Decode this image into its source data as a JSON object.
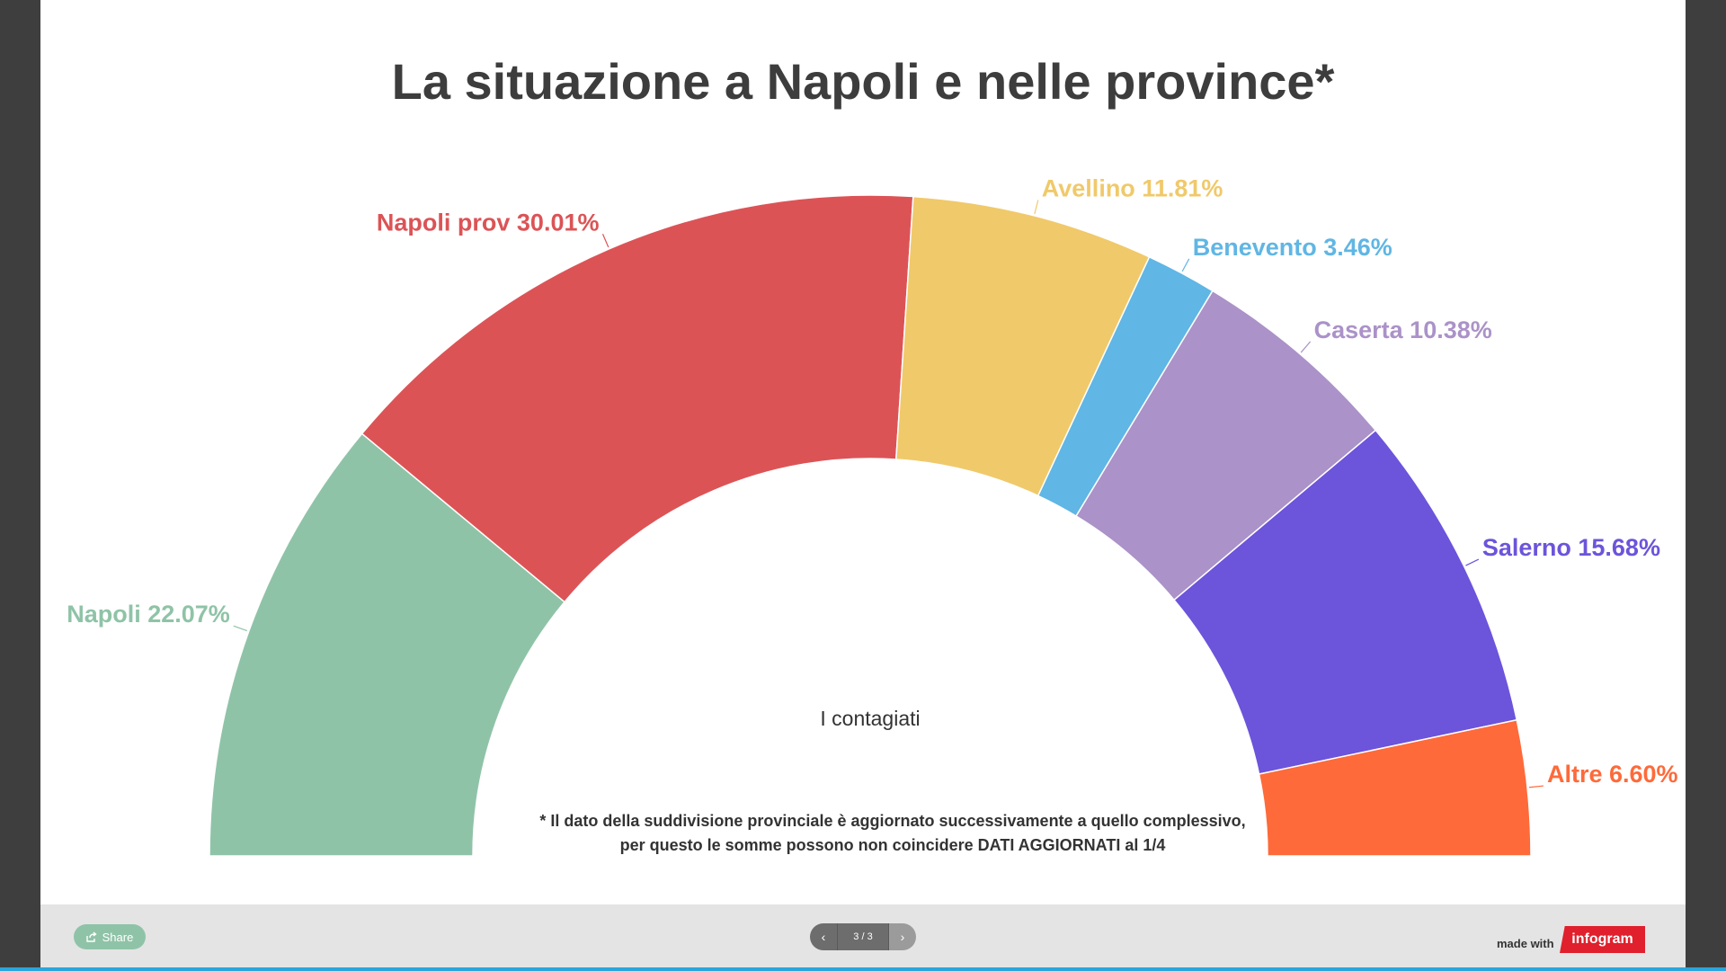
{
  "chart_data": {
    "type": "pie",
    "style": "semi-donut",
    "title": "La situazione a Napoli e nelle province*",
    "center_label": "I contagiati",
    "note_lines": [
      "* Il dato della suddivisione provinciale è aggiornato successivamente a quello complessivo,",
      "per questo le somme possono non coincidere DATI AGGIORNATI al 1/4"
    ],
    "slices": [
      {
        "name": "Napoli",
        "label": "Napoli 22.07%",
        "value": 22.07,
        "color": "#8fc3a7"
      },
      {
        "name": "Napoli prov",
        "label": "Napoli prov 30.01%",
        "value": 30.01,
        "color": "#dc5356"
      },
      {
        "name": "Avellino",
        "label": "Avellino 11.81%",
        "value": 11.81,
        "color": "#f0c96a"
      },
      {
        "name": "Benevento",
        "label": "Benevento 3.46%",
        "value": 3.46,
        "color": "#60b6e4"
      },
      {
        "name": "Caserta",
        "label": "Caserta 10.38%",
        "value": 10.38,
        "color": "#ab92c8"
      },
      {
        "name": "Salerno",
        "label": "Salerno 15.68%",
        "value": 15.68,
        "color": "#6c54db"
      },
      {
        "name": "Altre",
        "label": "Altre 6.60%",
        "value": 6.6,
        "color": "#fe6a3a"
      }
    ]
  },
  "footer": {
    "share_label": "Share",
    "pager_count": "3 / 3",
    "prev_icon": "chevron-left-icon",
    "next_icon": "chevron-right-icon",
    "made_with": "made with",
    "brand": "infogram"
  }
}
